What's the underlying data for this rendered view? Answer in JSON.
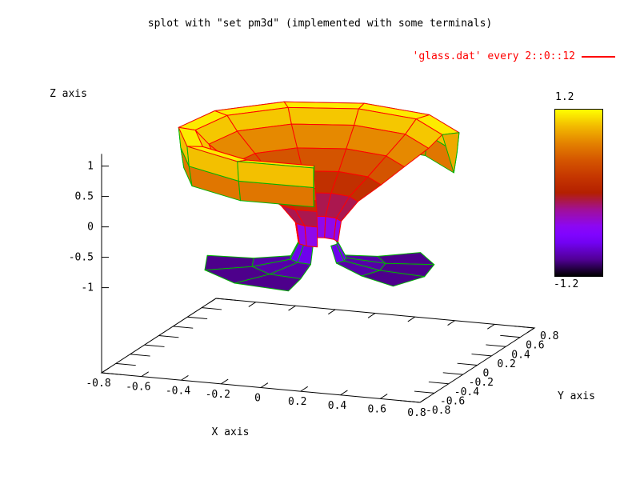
{
  "chart_data": {
    "type": "surface3d-pm3d",
    "title": "splot with \"set pm3d\" (implemented with some terminals)",
    "legend": {
      "label": "'glass.dat' every 2::0::12",
      "color": "#ff0000"
    },
    "axes": {
      "x": {
        "label": "X axis",
        "ticks": [
          -0.8,
          -0.6,
          -0.4,
          -0.2,
          0,
          0.2,
          0.4,
          0.6,
          0.8
        ],
        "range": [
          -0.8,
          0.8
        ]
      },
      "y": {
        "label": "Y axis",
        "ticks": [
          -0.8,
          -0.6,
          -0.4,
          -0.2,
          0,
          0.2,
          0.4,
          0.6,
          0.8
        ],
        "range": [
          -0.8,
          0.8
        ]
      },
      "z": {
        "label": "Z axis",
        "ticks": [
          -1,
          -0.5,
          0,
          0.5,
          1
        ],
        "range": [
          -1.2,
          1.2
        ]
      }
    },
    "colorbar": {
      "max_label": "1.2",
      "min_label": "-1.2",
      "range": [
        -1.2,
        1.2
      ],
      "stops": [
        [
          0,
          "#000000"
        ],
        [
          0.1,
          "#510096"
        ],
        [
          0.2,
          "#7202f2"
        ],
        [
          0.25,
          "#8004ff"
        ],
        [
          0.3,
          "#8c07f3"
        ],
        [
          0.4,
          "#a11096"
        ],
        [
          0.5,
          "#b42000"
        ],
        [
          0.6,
          "#c63700"
        ],
        [
          0.7,
          "#d55700"
        ],
        [
          0.8,
          "#e48300"
        ],
        [
          0.9,
          "#f2ba00"
        ],
        [
          1,
          "#ffff00"
        ]
      ]
    },
    "projection": {
      "origin": [
        127,
        466
      ],
      "ux": [
        248.75,
        23.125
      ],
      "uy": [
        89.375,
        -58.125
      ],
      "uz": -76,
      "xmin": -0.8,
      "ymin": -0.8,
      "zbase": -2.4
    },
    "surface": {
      "center": [
        0.0,
        0.0
      ],
      "profile": [
        [
          0.645,
          0.49
        ],
        [
          0.66,
          0.82
        ],
        [
          0.67,
          1.15
        ],
        [
          0.59,
          1.12
        ],
        [
          0.525,
          0.9
        ],
        [
          0.41,
          0.6
        ],
        [
          0.3,
          0.31
        ],
        [
          0.19,
          0.04
        ],
        [
          0.11,
          -0.28
        ],
        [
          0.095,
          -0.62
        ],
        [
          0.135,
          -0.88
        ],
        [
          0.32,
          -0.97
        ],
        [
          0.55,
          -0.99
        ]
      ],
      "band_edge_colors": [
        "#00b400",
        "#00b400",
        "#ff0000",
        "#ff0000",
        "#ff0000",
        "#ff0000",
        "#ff0000",
        "#ff0000",
        "#ff0000",
        "#00b400",
        "#00b400",
        "#00b400"
      ],
      "main_sweep": {
        "theta": [
          25,
          288
        ],
        "segments": 8,
        "row_range": [
          0,
          9
        ]
      },
      "flaps": [
        {
          "theta": [
            182,
            275
          ],
          "segments": 3,
          "row_range": [
            9,
            12
          ]
        },
        {
          "theta": [
            -30,
            48
          ],
          "segments": 3,
          "row_range": [
            9,
            12
          ]
        }
      ],
      "end_caps": [
        {
          "theta": 288,
          "rows": [
            0,
            1,
            2,
            3
          ]
        },
        {
          "theta": 25,
          "rows": [
            0,
            1,
            2,
            3
          ]
        }
      ],
      "depth_dir": [
        -1,
        2.7,
        -0.5
      ]
    },
    "colors": {
      "line_red": "#ff0000",
      "line_green": "#00b400",
      "axis": "#000000"
    }
  }
}
